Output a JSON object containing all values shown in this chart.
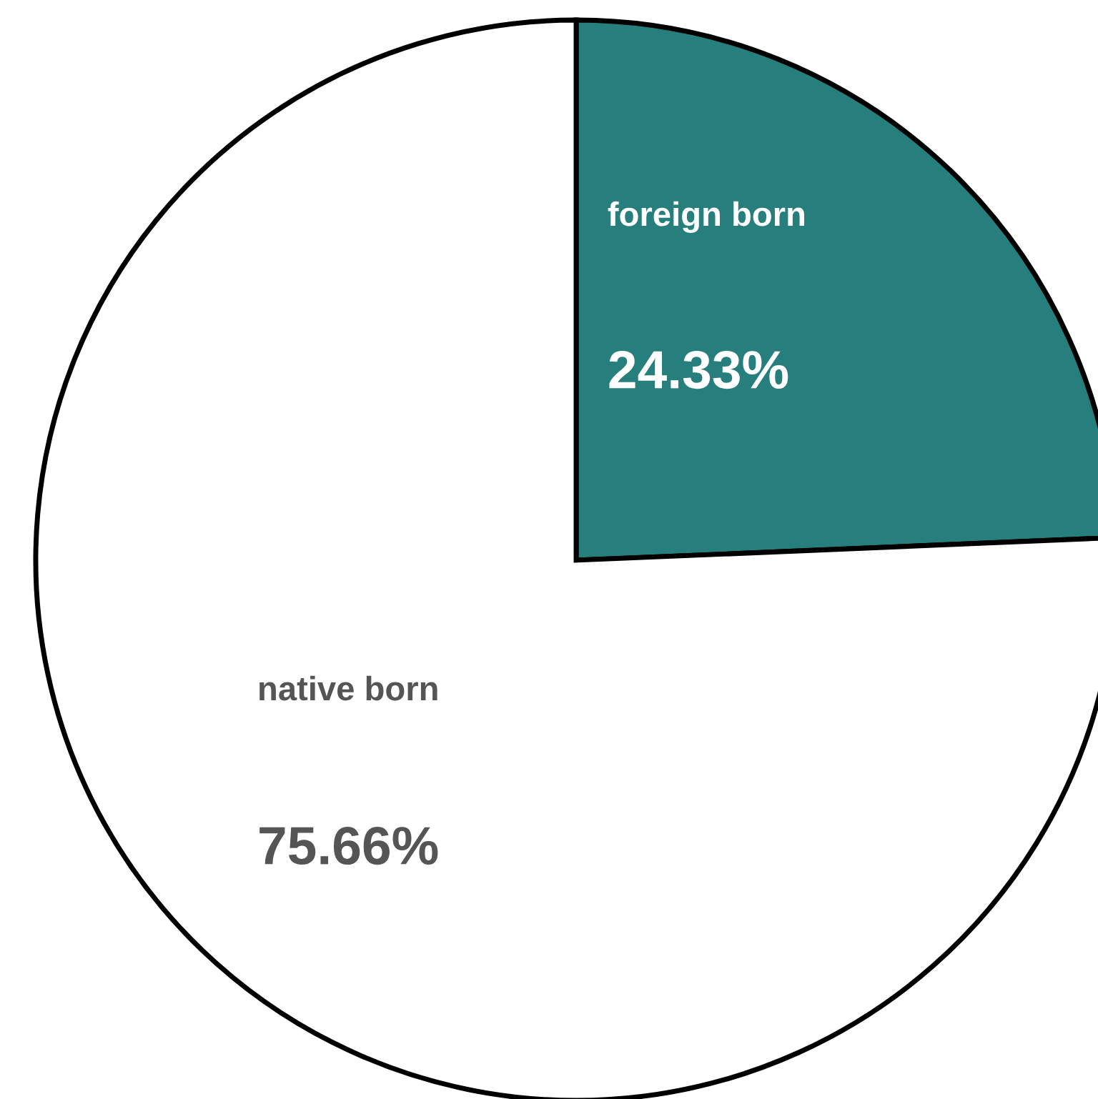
{
  "chart_data": {
    "type": "pie",
    "categories": [
      "foreign born",
      "native born"
    ],
    "values": [
      24.33,
      75.66
    ],
    "colors": [
      "#267f7d",
      "#ffffff"
    ],
    "value_labels": [
      "24.33%",
      "75.66%"
    ]
  }
}
